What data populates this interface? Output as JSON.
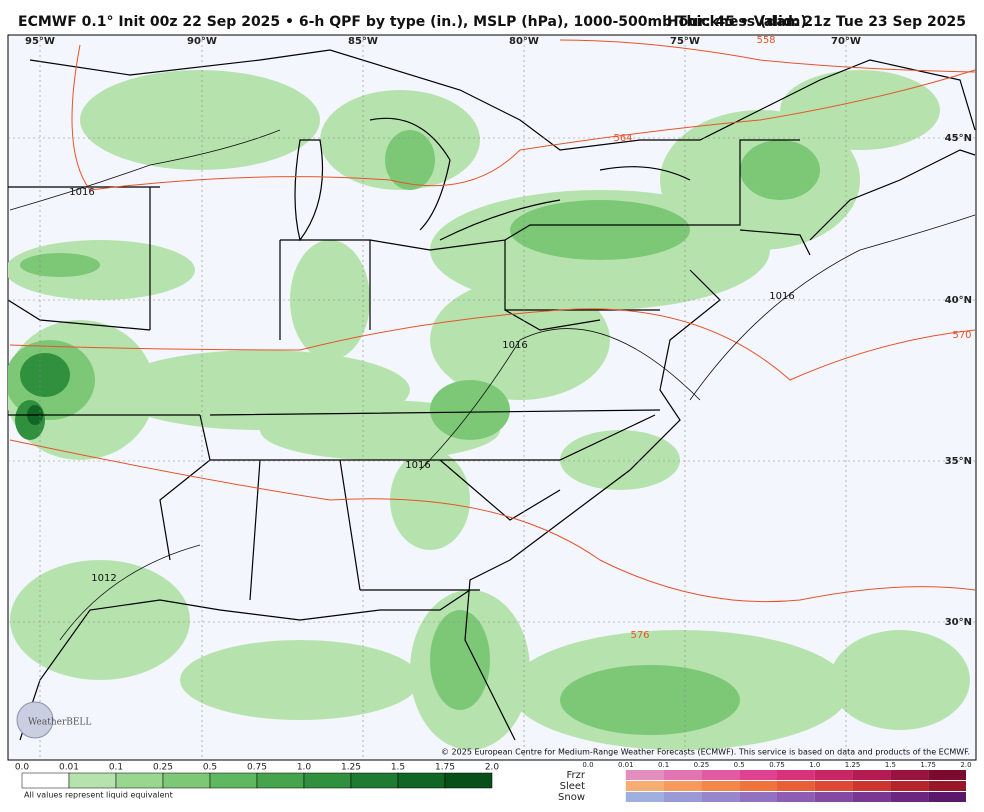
{
  "header": {
    "title_left": "ECMWF 0.1° Init 00z 22 Sep 2025 • 6-h QPF by type (in.), MSLP (hPa), 1000-500mb Thickness (dam)",
    "title_right": "Hour: 45 • Valid: 21z Tue 23 Sep 2025"
  },
  "map": {
    "lon_labels": [
      "95°W",
      "90°W",
      "85°W",
      "80°W",
      "75°W",
      "70°W"
    ],
    "lat_labels": [
      "45°N",
      "40°N",
      "35°N",
      "30°N"
    ],
    "isobar_labels": [
      "1016",
      "1016",
      "1016",
      "1016",
      "1012"
    ],
    "thickness_labels": [
      "564",
      "558",
      "570",
      "576"
    ],
    "logo": "WeatherBELL",
    "copyright": "© 2025 European Centre for Medium-Range Weather Forecasts (ECMWF). This service is based on data and products of the ECMWF."
  },
  "legend": {
    "rain_labels": [
      "0.0",
      "0.01",
      "0.1",
      "0.25",
      "0.5",
      "0.75",
      "1.0",
      "1.25",
      "1.5",
      "1.75",
      "2.0"
    ],
    "rain_colors": [
      "#ffffff",
      "#b6e3ad",
      "#99d690",
      "#7cc876",
      "#5db85f",
      "#45a44c",
      "#30903e",
      "#1f7b31",
      "#116625",
      "#07501a"
    ],
    "note": "All values represent liquid equivalent",
    "ptype_labels": [
      "0.0",
      "0.01",
      "0.1",
      "0.25",
      "0.5",
      "0.75",
      "1.0",
      "1.25",
      "1.5",
      "1.75",
      "2.0"
    ],
    "ptypes": [
      {
        "name": "Frzr",
        "colors": [
          "#e6a9cc",
          "#e28fc0",
          "#e175b3",
          "#e25aa3",
          "#e04292",
          "#d8327c",
          "#c82665",
          "#b41b52",
          "#9a1240",
          "#7c0a2e"
        ]
      },
      {
        "name": "Sleet",
        "colors": [
          "#f6c08c",
          "#f6ad72",
          "#f59a5c",
          "#f3874a",
          "#f0733d",
          "#e85e37",
          "#de4933",
          "#cd352f",
          "#b6232b",
          "#981626"
        ]
      },
      {
        "name": "Snow",
        "colors": [
          "#a9c6e8",
          "#9fb0e0",
          "#9a9bd6",
          "#9686cc",
          "#9272c0",
          "#8c5db2",
          "#8449a3",
          "#793792",
          "#6b2680",
          "#5a186c"
        ]
      }
    ]
  }
}
